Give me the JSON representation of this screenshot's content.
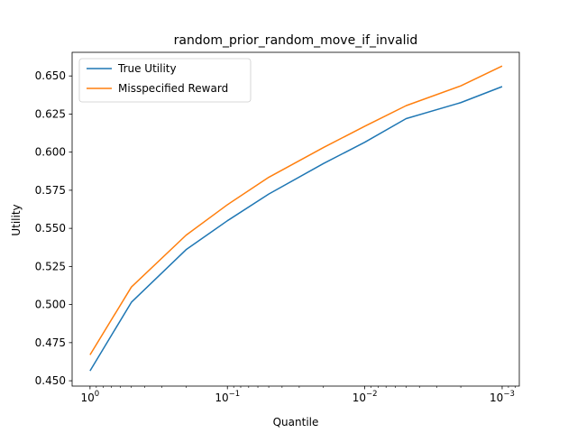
{
  "chart_data": {
    "type": "line",
    "title": "random_prior_random_move_if_invalid",
    "xlabel": "Quantile",
    "ylabel": "Utility",
    "xscale": "log",
    "x_inverted": true,
    "xlim": [
      1.35,
      0.00075
    ],
    "ylim": [
      0.4465,
      0.6655
    ],
    "x": [
      1,
      0.5,
      0.2,
      0.1,
      0.05,
      0.02,
      0.01,
      0.005,
      0.002,
      0.001
    ],
    "x_major_ticks": [
      {
        "value": 1,
        "label": "10",
        "exp": "0"
      },
      {
        "value": 0.1,
        "label": "10",
        "exp": "−1"
      },
      {
        "value": 0.01,
        "label": "10",
        "exp": "−2"
      },
      {
        "value": 0.001,
        "label": "10",
        "exp": "−3"
      }
    ],
    "y_ticks": [
      {
        "value": 0.45,
        "label": "0.450"
      },
      {
        "value": 0.475,
        "label": "0.475"
      },
      {
        "value": 0.5,
        "label": "0.500"
      },
      {
        "value": 0.525,
        "label": "0.525"
      },
      {
        "value": 0.55,
        "label": "0.550"
      },
      {
        "value": 0.575,
        "label": "0.575"
      },
      {
        "value": 0.6,
        "label": "0.600"
      },
      {
        "value": 0.625,
        "label": "0.625"
      },
      {
        "value": 0.65,
        "label": "0.650"
      }
    ],
    "series": [
      {
        "name": "True Utility",
        "color": "#1f77b4",
        "values": [
          0.4565,
          0.5015,
          0.536,
          0.555,
          0.5725,
          0.5925,
          0.6065,
          0.622,
          0.6325,
          0.643
        ]
      },
      {
        "name": "Misspecified Reward",
        "color": "#ff7f0e",
        "values": [
          0.467,
          0.5115,
          0.5455,
          0.5655,
          0.5835,
          0.603,
          0.617,
          0.6305,
          0.6435,
          0.6565
        ]
      }
    ],
    "grid": false,
    "legend_position": "top-left"
  }
}
